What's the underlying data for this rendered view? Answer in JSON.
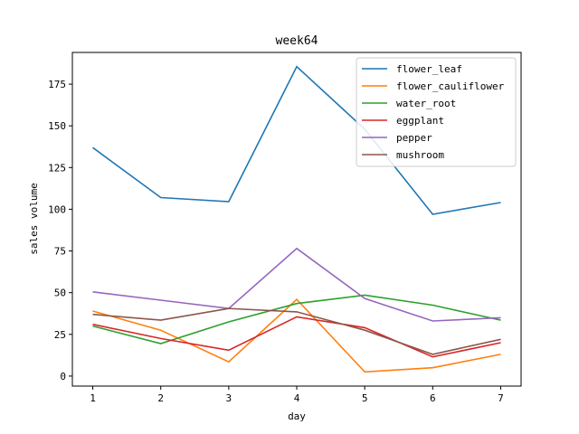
{
  "chart_data": {
    "type": "line",
    "title": "week64",
    "xlabel": "day",
    "ylabel": "sales volume",
    "x": [
      1,
      2,
      3,
      4,
      5,
      6,
      7
    ],
    "xlim": [
      0.7,
      7.3
    ],
    "ylim": [
      -6,
      194
    ],
    "xticks": [
      "1",
      "2",
      "3",
      "4",
      "5",
      "6",
      "7"
    ],
    "yticks": [
      0,
      25,
      50,
      75,
      100,
      125,
      150,
      175
    ],
    "grid": false,
    "legend_position": "top-right",
    "series": [
      {
        "name": "flower_leaf",
        "color": "#1f77b4",
        "values": [
          137,
          107,
          104.5,
          185.5,
          148,
          97,
          104
        ]
      },
      {
        "name": "flower_cauliflower",
        "color": "#ff7f0e",
        "values": [
          39,
          27.5,
          8.5,
          46,
          2.5,
          5,
          13
        ]
      },
      {
        "name": "water_root",
        "color": "#2ca02c",
        "values": [
          30,
          19.5,
          32.5,
          43.5,
          48.5,
          42.5,
          33.5
        ]
      },
      {
        "name": "eggplant",
        "color": "#d62728",
        "values": [
          31,
          22.5,
          15.5,
          35.5,
          29,
          11.5,
          20
        ]
      },
      {
        "name": "pepper",
        "color": "#9467bd",
        "values": [
          50.5,
          45.5,
          40.5,
          76.5,
          46.5,
          33,
          35
        ]
      },
      {
        "name": "mushroom",
        "color": "#8c564b",
        "values": [
          37,
          33.5,
          40.5,
          38.5,
          27.5,
          13,
          22
        ]
      }
    ]
  }
}
